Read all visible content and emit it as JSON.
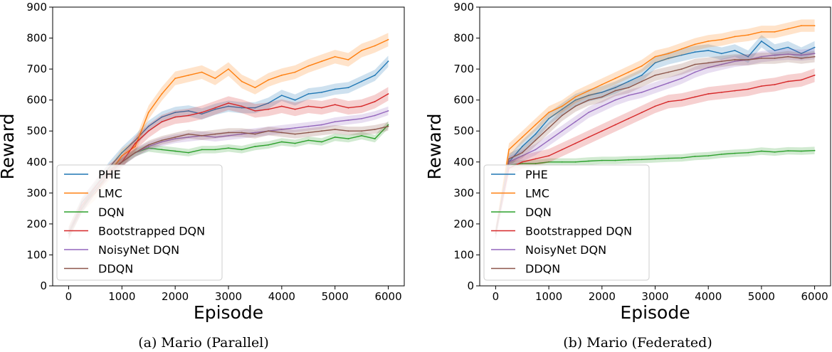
{
  "chart_data": [
    {
      "type": "line",
      "caption": "(a) Mario (Parallel)",
      "xlabel": "Episode",
      "ylabel": "Reward",
      "xlim": [
        -300,
        6300
      ],
      "ylim": [
        0,
        900
      ],
      "xticks": [
        "0",
        "1000",
        "2000",
        "3000",
        "4000",
        "5000",
        "6000"
      ],
      "yticks": [
        "0",
        "100",
        "200",
        "300",
        "400",
        "500",
        "600",
        "700",
        "800",
        "900"
      ],
      "legend_position": "lower-left",
      "grid": false,
      "x": [
        0,
        250,
        500,
        750,
        1000,
        1250,
        1500,
        1750,
        2000,
        2250,
        2500,
        2750,
        3000,
        3250,
        3500,
        3750,
        4000,
        4250,
        4500,
        4750,
        5000,
        5250,
        5500,
        5750,
        6000
      ],
      "series": [
        {
          "name": "PHE",
          "color": "#1f77b4",
          "band": 18,
          "values": [
            170,
            270,
            320,
            380,
            430,
            470,
            515,
            545,
            560,
            565,
            555,
            570,
            580,
            575,
            575,
            590,
            615,
            600,
            620,
            625,
            635,
            640,
            660,
            680,
            725
          ]
        },
        {
          "name": "LMC",
          "color": "#ff7f0e",
          "band": 22,
          "values": [
            170,
            260,
            300,
            360,
            420,
            450,
            560,
            620,
            670,
            680,
            690,
            670,
            700,
            660,
            640,
            665,
            680,
            690,
            710,
            725,
            740,
            730,
            760,
            775,
            795
          ]
        },
        {
          "name": "DQN",
          "color": "#2ca02c",
          "band": 12,
          "values": [
            170,
            250,
            320,
            370,
            400,
            430,
            445,
            440,
            435,
            430,
            440,
            440,
            445,
            440,
            450,
            455,
            465,
            460,
            470,
            465,
            480,
            475,
            485,
            475,
            520
          ]
        },
        {
          "name": "Bootstrapped DQN",
          "color": "#d62728",
          "band": 22,
          "values": [
            170,
            260,
            320,
            370,
            400,
            460,
            500,
            530,
            545,
            550,
            560,
            575,
            590,
            580,
            565,
            570,
            580,
            570,
            580,
            575,
            585,
            575,
            580,
            595,
            620
          ]
        },
        {
          "name": "NoisyNet DQN",
          "color": "#9467bd",
          "band": 14,
          "values": [
            170,
            250,
            310,
            360,
            400,
            430,
            450,
            465,
            475,
            480,
            485,
            480,
            485,
            490,
            495,
            500,
            505,
            510,
            515,
            520,
            530,
            535,
            540,
            550,
            565
          ]
        },
        {
          "name": "DDQN",
          "color": "#8c564b",
          "band": 14,
          "values": [
            170,
            250,
            310,
            360,
            400,
            430,
            455,
            470,
            480,
            490,
            485,
            490,
            495,
            495,
            490,
            500,
            495,
            490,
            495,
            500,
            505,
            500,
            500,
            505,
            515
          ]
        }
      ]
    },
    {
      "type": "line",
      "caption": "(b) Mario (Federated)",
      "xlabel": "Episode",
      "ylabel": "Reward",
      "xlim": [
        -300,
        6300
      ],
      "ylim": [
        0,
        900
      ],
      "xticks": [
        "0",
        "1000",
        "2000",
        "3000",
        "4000",
        "5000",
        "6000"
      ],
      "yticks": [
        "0",
        "100",
        "200",
        "300",
        "400",
        "500",
        "600",
        "700",
        "800",
        "900"
      ],
      "legend_position": "lower-left",
      "grid": false,
      "x": [
        0,
        250,
        500,
        750,
        1000,
        1250,
        1500,
        1750,
        2000,
        2250,
        2500,
        2750,
        3000,
        3250,
        3500,
        3750,
        4000,
        4250,
        4500,
        4750,
        5000,
        5250,
        5500,
        5750,
        6000
      ],
      "series": [
        {
          "name": "PHE",
          "color": "#1f77b4",
          "band": 20,
          "values": [
            170,
            400,
            450,
            490,
            540,
            570,
            600,
            615,
            625,
            640,
            660,
            680,
            720,
            735,
            745,
            755,
            760,
            750,
            760,
            740,
            790,
            760,
            770,
            750,
            770
          ]
        },
        {
          "name": "LMC",
          "color": "#ff7f0e",
          "band": 20,
          "values": [
            170,
            440,
            480,
            520,
            560,
            580,
            610,
            630,
            650,
            670,
            690,
            710,
            740,
            750,
            765,
            780,
            790,
            795,
            805,
            810,
            820,
            820,
            830,
            840,
            840
          ]
        },
        {
          "name": "DQN",
          "color": "#2ca02c",
          "band": 12,
          "values": [
            170,
            390,
            395,
            395,
            400,
            400,
            400,
            403,
            405,
            405,
            407,
            408,
            410,
            412,
            413,
            418,
            420,
            425,
            428,
            430,
            435,
            432,
            436,
            435,
            437
          ]
        },
        {
          "name": "Bootstrapped DQN",
          "color": "#d62728",
          "band": 22,
          "values": [
            170,
            380,
            400,
            410,
            420,
            440,
            460,
            480,
            500,
            520,
            540,
            560,
            580,
            595,
            600,
            610,
            620,
            625,
            630,
            635,
            645,
            650,
            660,
            665,
            680
          ]
        },
        {
          "name": "NoisyNet DQN",
          "color": "#9467bd",
          "band": 18,
          "values": [
            170,
            400,
            420,
            440,
            470,
            500,
            530,
            560,
            580,
            600,
            615,
            625,
            640,
            655,
            670,
            690,
            705,
            715,
            725,
            730,
            740,
            745,
            748,
            745,
            750
          ]
        },
        {
          "name": "DDQN",
          "color": "#8c564b",
          "band": 18,
          "values": [
            170,
            410,
            430,
            470,
            510,
            550,
            580,
            600,
            610,
            630,
            640,
            660,
            680,
            690,
            700,
            715,
            720,
            725,
            730,
            730,
            735,
            735,
            740,
            735,
            740
          ]
        }
      ]
    }
  ]
}
